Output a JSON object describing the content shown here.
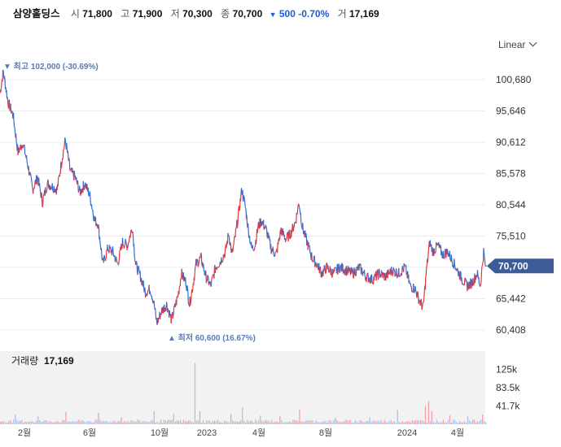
{
  "header": {
    "name": "삼양홀딩스",
    "open_label": "시",
    "open": "71,800",
    "high_label": "고",
    "high": "71,900",
    "low_label": "저",
    "low": "70,300",
    "close_label": "종",
    "close": "70,700",
    "change_arrow": "▼",
    "change": "500 -0.70%",
    "volume_label": "거",
    "volume": "17,169"
  },
  "scale_button": {
    "label": "Linear"
  },
  "colors": {
    "up": "#e8353b",
    "down": "#2d6fd8",
    "accent": "#3d5a99",
    "grid": "#ececec",
    "annotation": "#5a7bb8"
  },
  "chart_data": {
    "type": "line",
    "ylim": [
      60408,
      100680
    ],
    "y_ticks": [
      "100,680",
      "95,646",
      "90,612",
      "85,578",
      "80,544",
      "75,510",
      "70,476",
      "65,442",
      "60,408"
    ],
    "x_ticks": [
      "2월",
      "6월",
      "10월",
      "2023",
      "4월",
      "8월",
      "2024",
      "4월"
    ],
    "annotations": {
      "max": {
        "arrow": "▼",
        "label": "최고",
        "value": "102,000 (-30.69%)"
      },
      "min": {
        "arrow": "▲",
        "label": "최저",
        "value": "60,600 (16.67%)"
      }
    },
    "current": {
      "value": 70700,
      "label": "70,700"
    },
    "series": [
      {
        "values": [
          [
            0,
            98500
          ],
          [
            4,
            102000
          ],
          [
            10,
            97000
          ],
          [
            16,
            95000
          ],
          [
            22,
            89000
          ],
          [
            28,
            90500
          ],
          [
            34,
            87000
          ],
          [
            40,
            83000
          ],
          [
            46,
            85000
          ],
          [
            52,
            81000
          ],
          [
            58,
            84000
          ],
          [
            64,
            83500
          ],
          [
            70,
            83000
          ],
          [
            76,
            88000
          ],
          [
            80,
            91000
          ],
          [
            86,
            86000
          ],
          [
            92,
            85000
          ],
          [
            98,
            82500
          ],
          [
            104,
            84000
          ],
          [
            110,
            82000
          ],
          [
            116,
            78000
          ],
          [
            120,
            77500
          ],
          [
            126,
            71000
          ],
          [
            132,
            73500
          ],
          [
            138,
            73000
          ],
          [
            144,
            71000
          ],
          [
            150,
            74500
          ],
          [
            156,
            74000
          ],
          [
            162,
            77000
          ],
          [
            166,
            71000
          ],
          [
            172,
            69000
          ],
          [
            178,
            66500
          ],
          [
            184,
            67000
          ],
          [
            188,
            65000
          ],
          [
            192,
            61500
          ],
          [
            198,
            63500
          ],
          [
            204,
            64500
          ],
          [
            210,
            62000
          ],
          [
            214,
            64000
          ],
          [
            218,
            66000
          ],
          [
            222,
            69500
          ],
          [
            228,
            68000
          ],
          [
            232,
            64500
          ],
          [
            236,
            67500
          ],
          [
            240,
            71000
          ],
          [
            246,
            72000
          ],
          [
            252,
            69000
          ],
          [
            258,
            67500
          ],
          [
            264,
            70500
          ],
          [
            270,
            71500
          ],
          [
            276,
            73000
          ],
          [
            280,
            76000
          ],
          [
            284,
            72500
          ],
          [
            288,
            75500
          ],
          [
            292,
            79000
          ],
          [
            296,
            83000
          ],
          [
            300,
            80500
          ],
          [
            304,
            76500
          ],
          [
            308,
            73500
          ],
          [
            312,
            74000
          ],
          [
            316,
            77000
          ],
          [
            320,
            78000
          ],
          [
            326,
            76500
          ],
          [
            332,
            73500
          ],
          [
            338,
            72500
          ],
          [
            344,
            76500
          ],
          [
            350,
            75000
          ],
          [
            356,
            76000
          ],
          [
            362,
            78000
          ],
          [
            366,
            81000
          ],
          [
            370,
            77000
          ],
          [
            376,
            74500
          ],
          [
            382,
            72000
          ],
          [
            388,
            71000
          ],
          [
            394,
            69500
          ],
          [
            400,
            70500
          ],
          [
            408,
            69500
          ],
          [
            416,
            70500
          ],
          [
            424,
            70000
          ],
          [
            432,
            69500
          ],
          [
            440,
            70500
          ],
          [
            448,
            69000
          ],
          [
            456,
            68500
          ],
          [
            464,
            69500
          ],
          [
            472,
            69000
          ],
          [
            480,
            70000
          ],
          [
            488,
            69500
          ],
          [
            496,
            70500
          ],
          [
            502,
            67500
          ],
          [
            508,
            67000
          ],
          [
            514,
            65000
          ],
          [
            518,
            64000
          ],
          [
            522,
            70000
          ],
          [
            526,
            74500
          ],
          [
            530,
            73000
          ],
          [
            536,
            74000
          ],
          [
            542,
            72500
          ],
          [
            548,
            73000
          ],
          [
            554,
            71500
          ],
          [
            560,
            70000
          ],
          [
            566,
            68500
          ],
          [
            572,
            67500
          ],
          [
            578,
            68000
          ],
          [
            584,
            69500
          ],
          [
            588,
            67500
          ],
          [
            592,
            73000
          ],
          [
            594,
            70700
          ]
        ]
      }
    ],
    "volume": {
      "title": "거래량",
      "last_label": "17,169",
      "y_ticks": [
        "125k",
        "83.5k",
        "41.7k"
      ],
      "ylim": [
        0,
        167000
      ],
      "spikes": [
        [
          18,
          22000
        ],
        [
          46,
          18000
        ],
        [
          80,
          28000
        ],
        [
          120,
          26000
        ],
        [
          148,
          16000
        ],
        [
          188,
          30000
        ],
        [
          212,
          24000
        ],
        [
          238,
          140000
        ],
        [
          244,
          30000
        ],
        [
          282,
          24000
        ],
        [
          296,
          38000
        ],
        [
          318,
          20000
        ],
        [
          342,
          18000
        ],
        [
          366,
          34000
        ],
        [
          410,
          15000
        ],
        [
          452,
          16000
        ],
        [
          486,
          32000
        ],
        [
          520,
          42000
        ],
        [
          524,
          52000
        ],
        [
          528,
          30000
        ],
        [
          550,
          20000
        ],
        [
          572,
          18000
        ],
        [
          590,
          22000
        ]
      ],
      "baseline": 7000
    }
  }
}
